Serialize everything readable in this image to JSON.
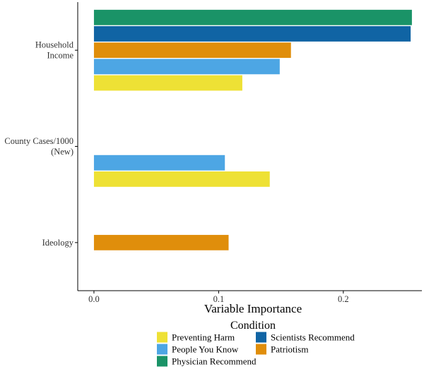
{
  "chart_data": {
    "type": "bar",
    "orientation": "horizontal",
    "xlabel": "Variable Importance",
    "ylabel": "",
    "xlim": [
      -0.013,
      0.263
    ],
    "x_ticks": [
      {
        "value": 0.0,
        "label": "0.0"
      },
      {
        "value": 0.1,
        "label": "0.1"
      },
      {
        "value": 0.2,
        "label": "0.2"
      }
    ],
    "categories": [
      {
        "lines": [
          "Household",
          "Income"
        ]
      },
      {
        "lines": [
          "County Cases/1000",
          "(New)"
        ]
      },
      {
        "lines": [
          "Ideology"
        ]
      }
    ],
    "legend_title": "Condition",
    "legend_placement": "bottom",
    "series": [
      {
        "name": "Preventing Harm",
        "color": "#EEE135",
        "values": [
          0.119,
          0.141,
          null
        ]
      },
      {
        "name": "People You Know",
        "color": "#4DA6E4",
        "values": [
          0.149,
          0.105,
          null
        ]
      },
      {
        "name": "Patriotism",
        "color": "#E08E0B",
        "values": [
          0.158,
          null,
          0.108
        ]
      },
      {
        "name": "Scientists Recommend",
        "color": "#1064A4",
        "values": [
          0.254,
          null,
          null
        ]
      },
      {
        "name": "Physician Recommend",
        "color": "#1A9367",
        "values": [
          0.255,
          null,
          null
        ]
      }
    ],
    "legend_order": [
      "Preventing Harm",
      "People You Know",
      "Physician Recommend",
      "Scientists Recommend",
      "Patriotism"
    ],
    "grid": false
  }
}
